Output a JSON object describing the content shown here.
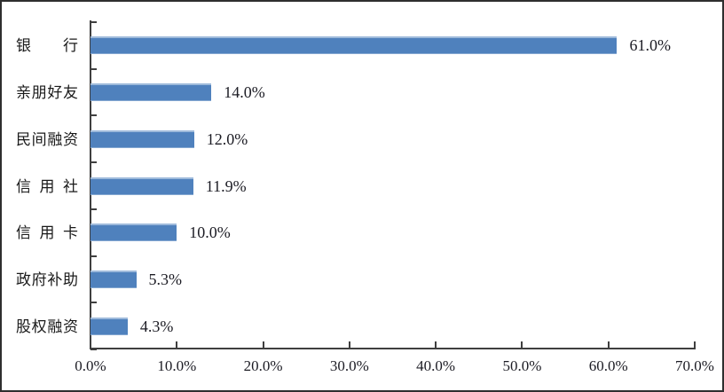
{
  "chart_data": {
    "type": "bar",
    "orientation": "horizontal",
    "title": "",
    "xlabel": "",
    "ylabel": "",
    "categories": [
      "银行",
      "亲朋好友",
      "民间融资",
      "信用社",
      "信用卡",
      "政府补助",
      "股权融资"
    ],
    "values": [
      61.0,
      14.0,
      12.0,
      11.9,
      10.0,
      5.3,
      4.3
    ],
    "value_labels": [
      "61.0%",
      "14.0%",
      "12.0%",
      "11.9%",
      "10.0%",
      "5.3%",
      "4.3%"
    ],
    "x_tick_labels": [
      "0.0%",
      "10.0%",
      "20.0%",
      "30.0%",
      "40.0%",
      "50.0%",
      "60.0%",
      "70.0%"
    ],
    "xlim": [
      0,
      70
    ],
    "x_tick_step": 10,
    "grid": false,
    "legend": "none",
    "data_labels": "outside-end"
  },
  "colors": {
    "bar_fill": "#4f81bd",
    "bar_highlight": "#aec6e8",
    "axis_line": "#3f3f3f",
    "text": "#1a1a1a",
    "frame_border": "#2e2e2e",
    "background": "#ffffff"
  }
}
